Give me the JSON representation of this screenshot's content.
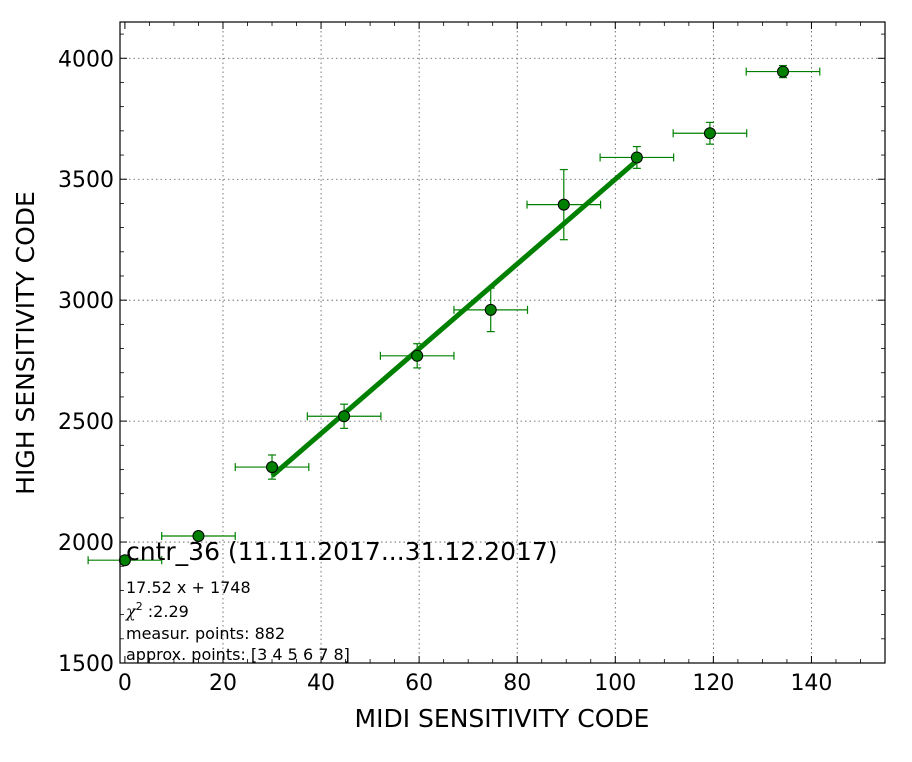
{
  "chart_data": {
    "type": "scatter",
    "xlabel": "MIDI SENSITIVITY CODE",
    "ylabel": "HIGH SENSITIVITY CODE",
    "xlim": [
      -1,
      155
    ],
    "ylim": [
      1500,
      4150
    ],
    "xticks": [
      0,
      20,
      40,
      60,
      80,
      100,
      120,
      140
    ],
    "yticks": [
      1500,
      2000,
      2500,
      3000,
      3500,
      4000
    ],
    "grid": true,
    "colors": {
      "series": "#008000",
      "marker": "#006400"
    },
    "points": [
      {
        "x": 0,
        "y": 1925,
        "xerr": 7.5,
        "yerr": 10
      },
      {
        "x": 15,
        "y": 2025,
        "xerr": 7.5,
        "yerr": 10
      },
      {
        "x": 30,
        "y": 2310,
        "xerr": 7.5,
        "yerr": 50
      },
      {
        "x": 44.7,
        "y": 2520,
        "xerr": 7.5,
        "yerr": 50
      },
      {
        "x": 59.6,
        "y": 2770,
        "xerr": 7.5,
        "yerr": 50
      },
      {
        "x": 74.6,
        "y": 2960,
        "xerr": 7.5,
        "yerr": 90
      },
      {
        "x": 89.5,
        "y": 3395,
        "xerr": 7.5,
        "yerr": 145
      },
      {
        "x": 104.4,
        "y": 3590,
        "xerr": 7.5,
        "yerr": 45
      },
      {
        "x": 119.3,
        "y": 3690,
        "xerr": 7.5,
        "yerr": 45
      },
      {
        "x": 134.2,
        "y": 3945,
        "xerr": 7.5,
        "yerr": 25
      }
    ],
    "fit": {
      "slope": 17.52,
      "intercept": 1748,
      "x_range": [
        30,
        104.4
      ]
    },
    "annotation": {
      "title": "cntr_36 (11.11.2017...31.12.2017)",
      "equation": "17.52 x + 1748",
      "chi2_symbol": "χ",
      "chi2_power": "2",
      "chi2_value": " :2.29",
      "measur_points": "measur. points: 882",
      "approx_points": "approx. points: [3 4 5 6 7 8]"
    }
  }
}
